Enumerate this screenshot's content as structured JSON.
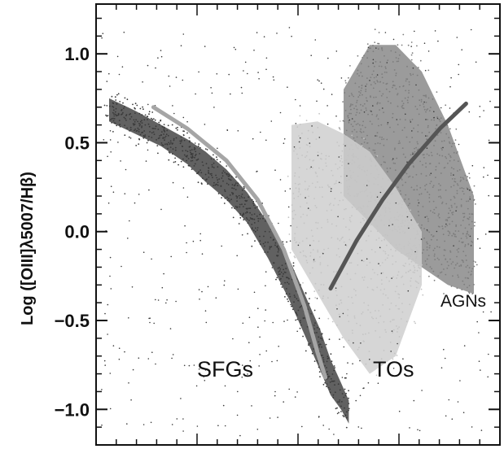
{
  "chart_data": {
    "type": "scatter",
    "title": "",
    "xlabel": "",
    "ylabel": "Log ([OIII]λ5007/Hβ)",
    "ylim": [
      -1.2,
      1.28
    ],
    "y_ticks": [
      1.0,
      0.5,
      0.0,
      -0.5,
      -1.0
    ],
    "y_tick_labels": [
      "1.0",
      "0.5",
      "0.0",
      "−0.5",
      "−1.0"
    ],
    "x_tick_labels": [],
    "grid": false,
    "annotations": [
      "SFGs",
      "TOs",
      "AGNs"
    ],
    "colors": {
      "sfg": "#454545",
      "to": "#cfcfcf",
      "agn": "#8a8a8a",
      "sfg_track": "#a5a5a5",
      "agn_track": "#555555",
      "scatter_outliers": "#3a3a3a"
    },
    "series": [
      {
        "name": "SFGs",
        "kind": "density_band",
        "x": [
          0.05,
          0.15,
          0.25,
          0.35,
          0.42,
          0.5,
          0.58,
          0.66,
          0.74,
          0.8,
          0.86,
          0.9,
          0.94,
          0.97
        ],
        "y_upper": [
          0.75,
          0.68,
          0.6,
          0.52,
          0.45,
          0.35,
          0.22,
          0.05,
          -0.15,
          -0.35,
          -0.55,
          -0.72,
          -0.85,
          -0.95
        ],
        "y_lower": [
          0.62,
          0.55,
          0.48,
          0.38,
          0.28,
          0.18,
          0.05,
          -0.15,
          -0.38,
          -0.58,
          -0.78,
          -0.92,
          -1.0,
          -1.08
        ]
      },
      {
        "name": "TOs",
        "kind": "density_region",
        "x": [
          0.75,
          0.85,
          0.95,
          1.05,
          1.15,
          1.25
        ],
        "y_upper": [
          0.6,
          0.62,
          0.55,
          0.45,
          0.25,
          0.0
        ],
        "y_lower": [
          -0.1,
          -0.35,
          -0.6,
          -0.8,
          -0.7,
          -0.3
        ]
      },
      {
        "name": "AGNs",
        "kind": "density_region",
        "x": [
          0.95,
          1.05,
          1.15,
          1.25,
          1.35,
          1.45
        ],
        "y_upper": [
          0.8,
          1.05,
          1.05,
          0.9,
          0.6,
          0.2
        ],
        "y_lower": [
          0.2,
          0.05,
          -0.1,
          -0.2,
          -0.3,
          -0.35
        ]
      },
      {
        "name": "SFG track",
        "kind": "line",
        "x": [
          0.22,
          0.35,
          0.5,
          0.62,
          0.72,
          0.8,
          0.85,
          0.88
        ],
        "y": [
          0.7,
          0.58,
          0.4,
          0.18,
          -0.1,
          -0.42,
          -0.68,
          -0.82
        ]
      },
      {
        "name": "AGN track",
        "kind": "line",
        "x": [
          0.9,
          1.0,
          1.1,
          1.2,
          1.32,
          1.42
        ],
        "y": [
          -0.32,
          -0.05,
          0.18,
          0.38,
          0.58,
          0.72
        ]
      }
    ],
    "xlim": [
      0.0,
      1.55
    ]
  }
}
